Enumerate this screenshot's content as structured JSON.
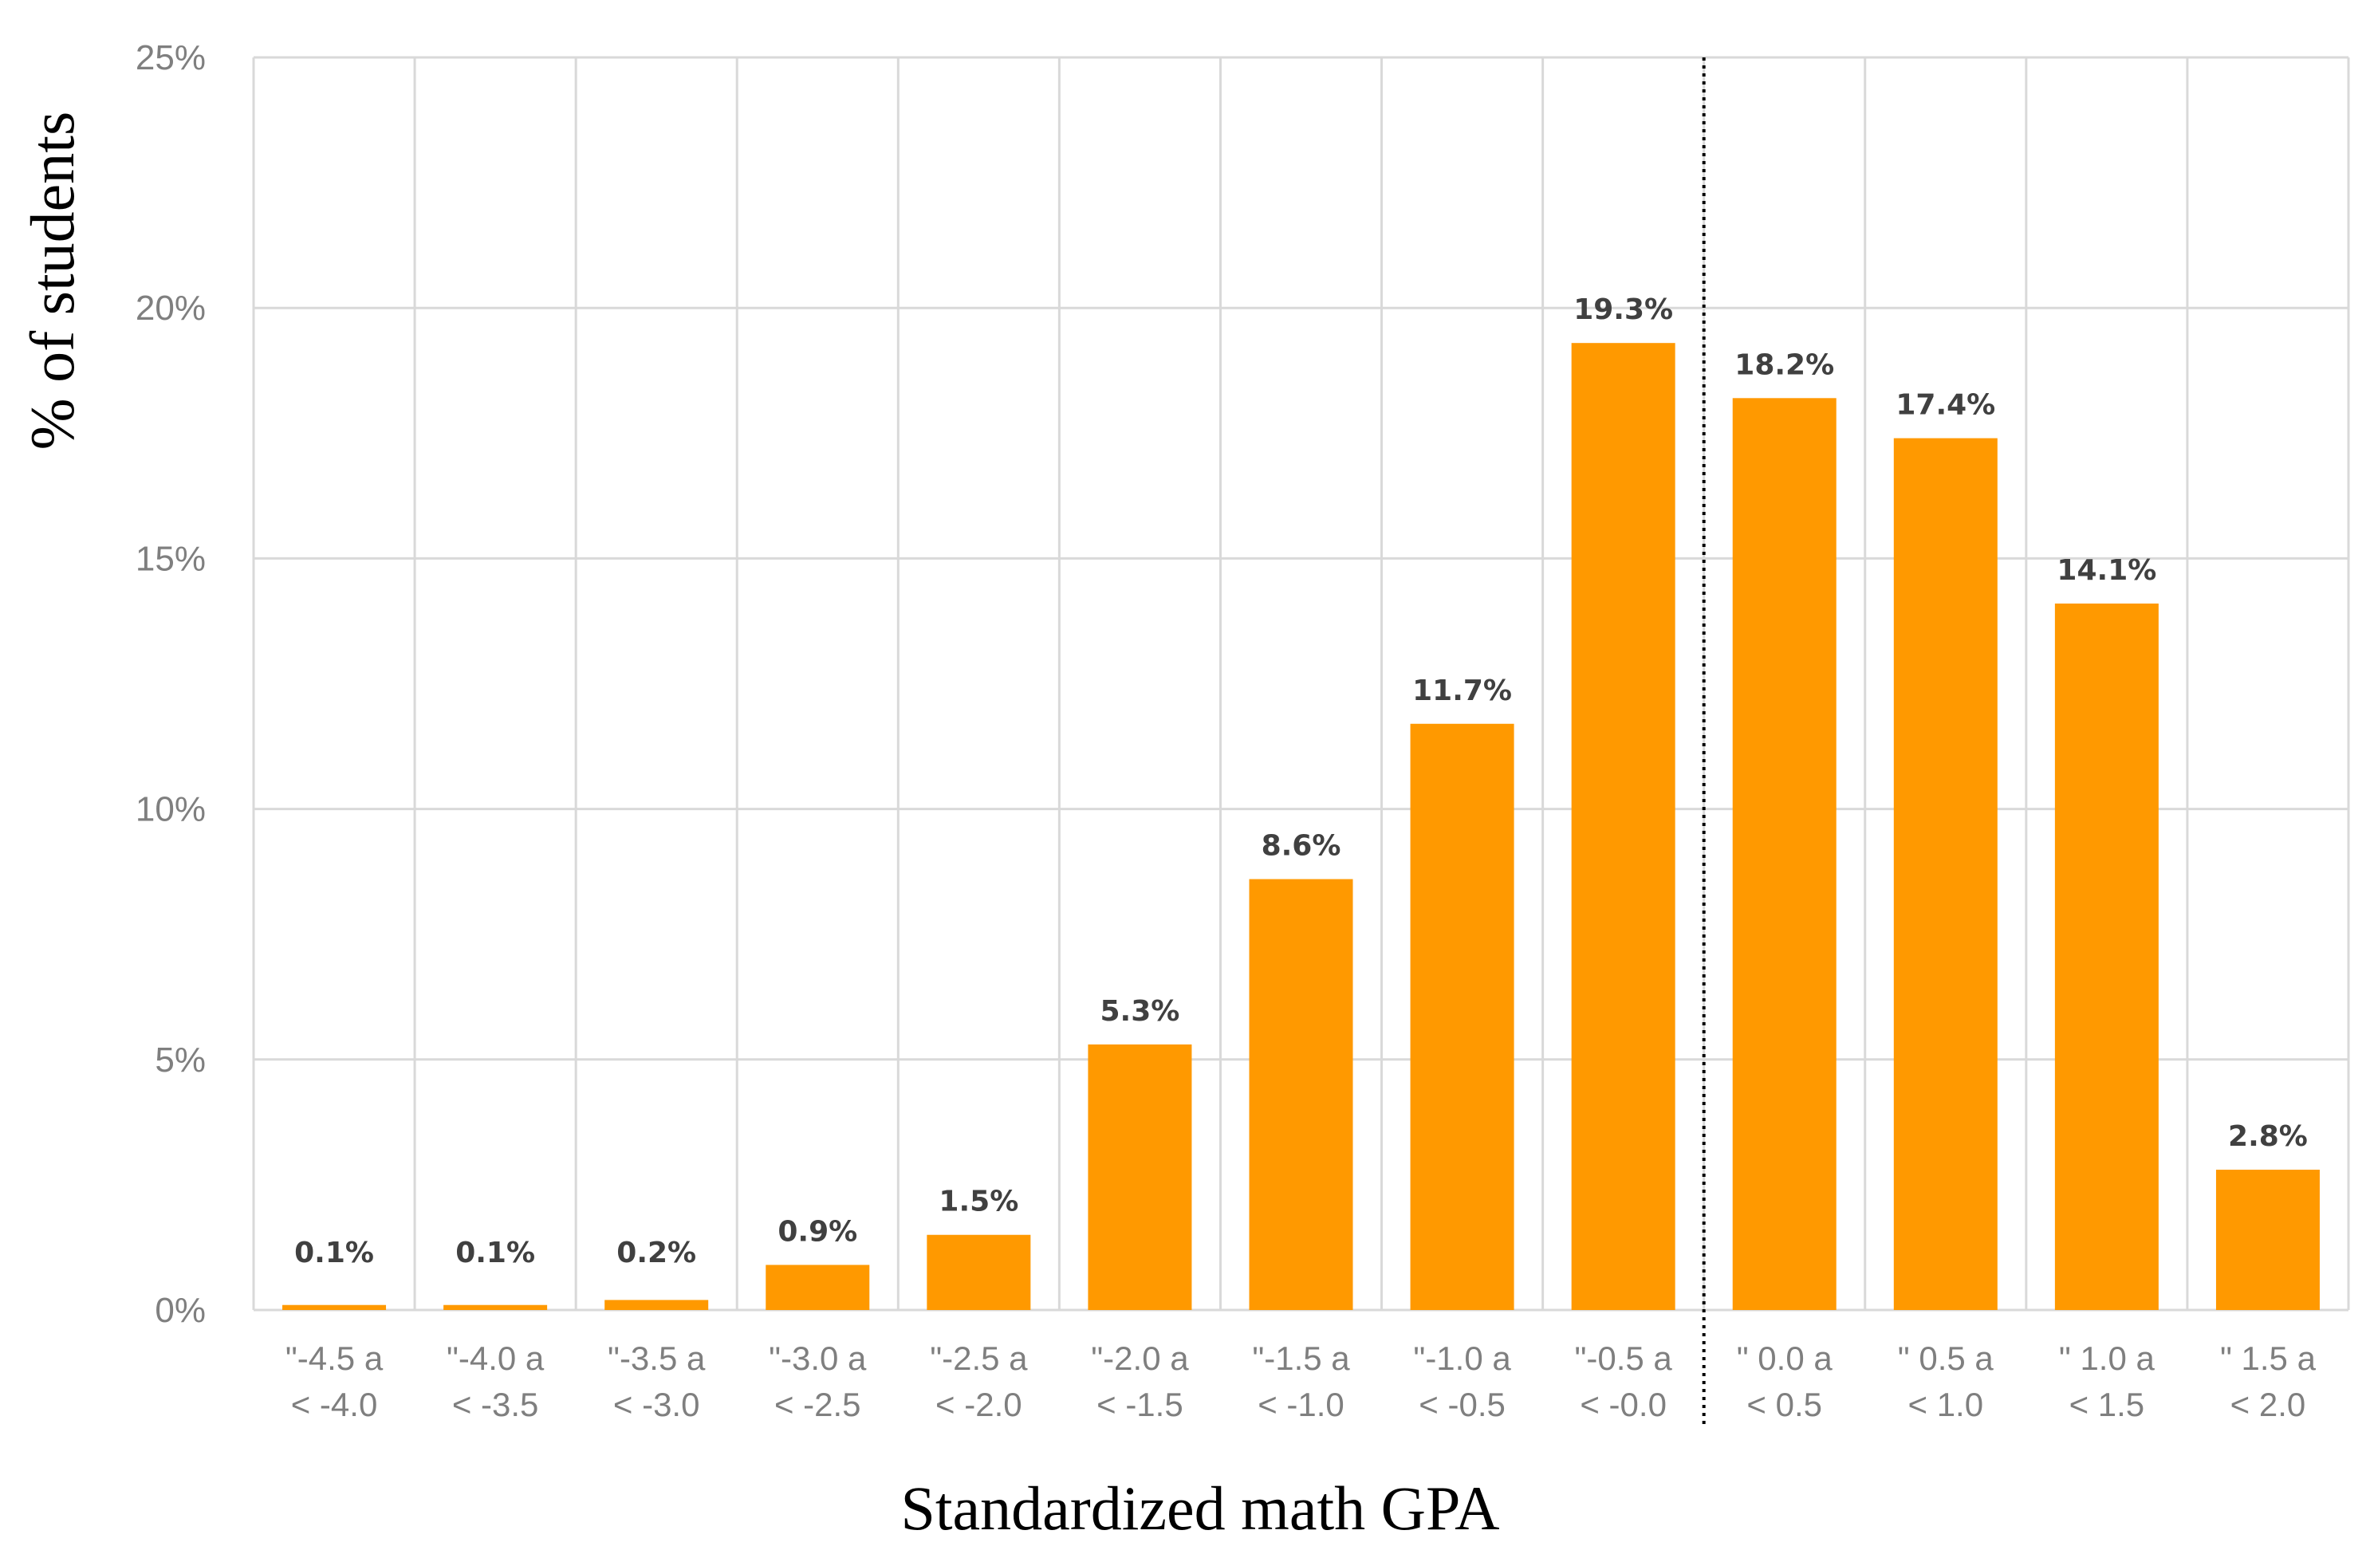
{
  "chart_data": {
    "type": "bar",
    "title": "",
    "xlabel": "Standardized math GPA",
    "ylabel": "% of students",
    "ylim": [
      0,
      25
    ],
    "yticks": [
      0,
      5,
      10,
      15,
      20,
      25
    ],
    "ytick_labels": [
      "0%",
      "5%",
      "10%",
      "15%",
      "20%",
      "25%"
    ],
    "grid": true,
    "bar_color": "#ff9900",
    "reference_line": {
      "style": "dotted",
      "between_categories": [
        8,
        9
      ]
    },
    "categories": [
      {
        "line1": "\"-4.5 a",
        "line2": "< -4.0"
      },
      {
        "line1": "\"-4.0 a",
        "line2": "< -3.5"
      },
      {
        "line1": "\"-3.5 a",
        "line2": "< -3.0"
      },
      {
        "line1": "\"-3.0 a",
        "line2": "< -2.5"
      },
      {
        "line1": "\"-2.5 a",
        "line2": "< -2.0"
      },
      {
        "line1": "\"-2.0 a",
        "line2": "< -1.5"
      },
      {
        "line1": "\"-1.5 a",
        "line2": "< -1.0"
      },
      {
        "line1": "\"-1.0 a",
        "line2": "< -0.5"
      },
      {
        "line1": "\"-0.5 a",
        "line2": "< -0.0"
      },
      {
        "line1": "\" 0.0 a",
        "line2": "< 0.5"
      },
      {
        "line1": "\" 0.5 a",
        "line2": "< 1.0"
      },
      {
        "line1": "\" 1.0 a",
        "line2": "< 1.5"
      },
      {
        "line1": "\" 1.5 a",
        "line2": "< 2.0"
      }
    ],
    "values": [
      0.1,
      0.1,
      0.2,
      0.9,
      1.5,
      5.3,
      8.6,
      11.7,
      19.3,
      18.2,
      17.4,
      14.1,
      2.8
    ],
    "data_labels": [
      "0.1%",
      "0.1%",
      "0.2%",
      "0.9%",
      "1.5%",
      "5.3%",
      "8.6%",
      "11.7%",
      "19.3%",
      "18.2%",
      "17.4%",
      "14.1%",
      "2.8%"
    ]
  }
}
